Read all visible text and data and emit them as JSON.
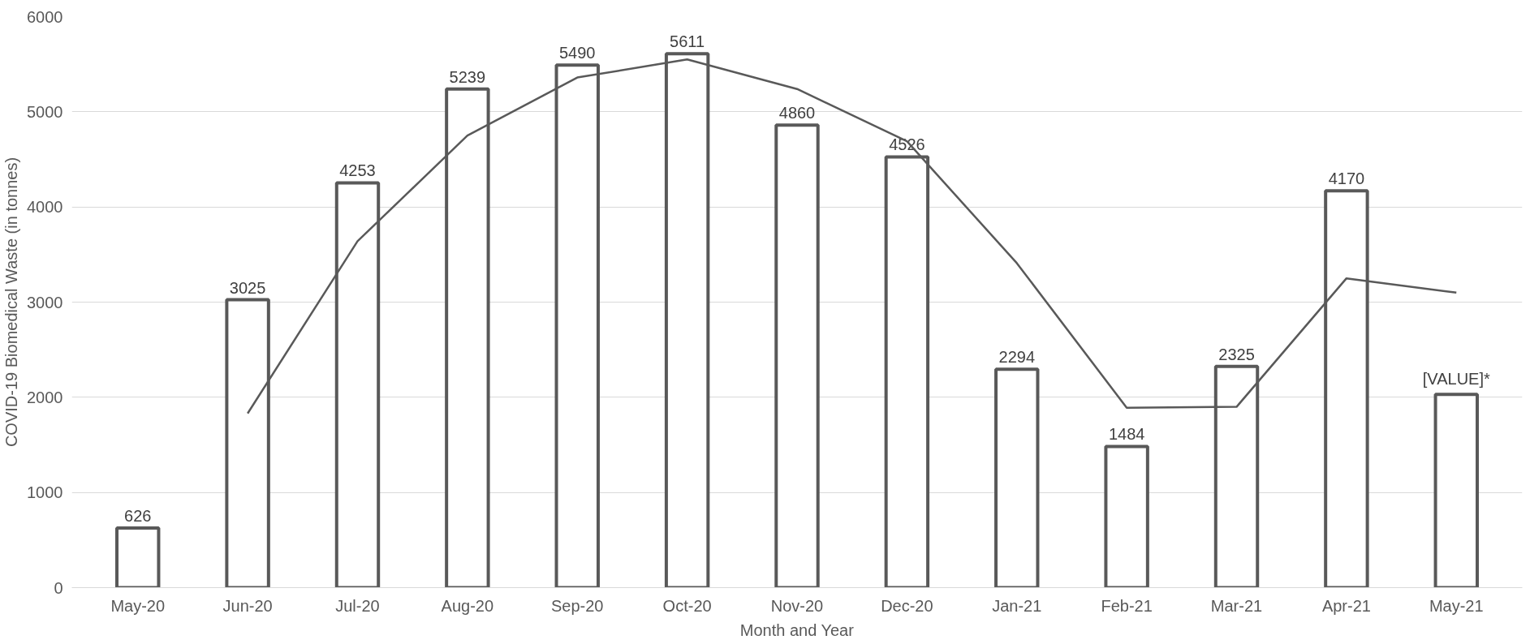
{
  "chart_data": {
    "type": "bar",
    "xlabel": "Month and Year",
    "ylabel": "COVID-19 Biomedical Waste (in tonnes)",
    "categories": [
      "May-20",
      "Jun-20",
      "Jul-20",
      "Aug-20",
      "Sep-20",
      "Oct-20",
      "Nov-20",
      "Dec-20",
      "Jan-21",
      "Feb-21",
      "Mar-21",
      "Apr-21",
      "May-21"
    ],
    "series": [
      {
        "color": "#595959",
        "values": [
          626,
          3025,
          4253,
          5239,
          5490,
          5611,
          4860,
          4526,
          2294,
          1484,
          2325,
          4170,
          2030
        ],
        "value_labels": [
          "626",
          "3025",
          "4253",
          "5239",
          "5490",
          "5611",
          "4860",
          "4526",
          "2294",
          "1484",
          "2325",
          "4170",
          "[VALUE]*"
        ]
      },
      {
        "type": "line",
        "color": "#595959",
        "values": [
          null,
          1830,
          3640,
          4750,
          5360,
          5550,
          5240,
          4690,
          3410,
          1890,
          1900,
          3250,
          3100
        ]
      }
    ],
    "ylim": [
      0,
      6000
    ],
    "yticks": [
      0,
      1000,
      2000,
      3000,
      4000,
      5000,
      6000
    ],
    "grid": "y",
    "line_style": "solid"
  }
}
